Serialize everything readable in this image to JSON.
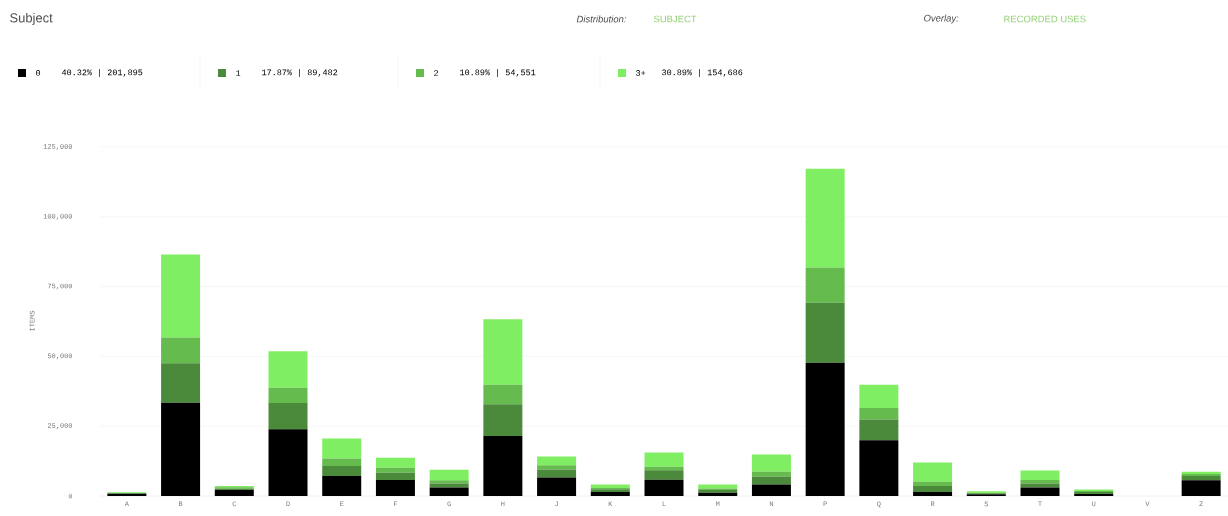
{
  "chart_data": {
    "type": "bar",
    "stacked": true,
    "title": "Subject",
    "ylabel": "ITEMS",
    "annotations": [
      "Distribution:",
      "SUBJECT",
      "Overlay:",
      "RECORDED USES",
      "40.32% | 201,895",
      "17.87% | 89,482",
      "10.89% | 54,551",
      "30.89% | 154,686"
    ],
    "categories": [
      "A",
      "B",
      "C",
      "D",
      "E",
      "F",
      "G",
      "H",
      "J",
      "K",
      "L",
      "M",
      "N",
      "P",
      "Q",
      "R",
      "S",
      "T",
      "U",
      "V",
      "Z"
    ],
    "series": [
      {
        "name": "0",
        "color": "#000000",
        "values": [
          800,
          33400,
          2100,
          23900,
          7200,
          5700,
          3000,
          21500,
          6600,
          1400,
          5800,
          1200,
          4100,
          47700,
          20000,
          1400,
          600,
          3000,
          700,
          0,
          5600
        ]
      },
      {
        "name": "1",
        "color": "#4a8a3a",
        "values": [
          200,
          14100,
          500,
          9400,
          3500,
          2600,
          1500,
          11400,
          2900,
          1000,
          3400,
          900,
          2900,
          21500,
          7400,
          2200,
          400,
          1500,
          700,
          0,
          1600
        ]
      },
      {
        "name": "2",
        "color": "#66bb4f",
        "values": [
          100,
          9300,
          500,
          5500,
          2700,
          1800,
          1100,
          6900,
          1500,
          500,
          1300,
          600,
          1700,
          12600,
          4100,
          1500,
          null,
          1200,
          400,
          0,
          700
        ]
      },
      {
        "name": "3+",
        "color": "#80ee62",
        "values": [
          200,
          29700,
          500,
          13000,
          7200,
          3600,
          3800,
          23500,
          3100,
          1200,
          5100,
          1400,
          6200,
          35400,
          8300,
          6900,
          700,
          3400,
          500,
          0,
          800
        ]
      }
    ],
    "ylim": [
      0,
      125000
    ],
    "yticks": [
      {
        "value": 0,
        "label": "0"
      },
      {
        "value": 25000,
        "label": "25,000"
      },
      {
        "value": 50000,
        "label": "50,000"
      },
      {
        "value": 75000,
        "label": "75,000"
      },
      {
        "value": 100000,
        "label": "100,000"
      },
      {
        "value": 125000,
        "label": "125,000"
      }
    ],
    "grid": "y",
    "legend": "top"
  }
}
